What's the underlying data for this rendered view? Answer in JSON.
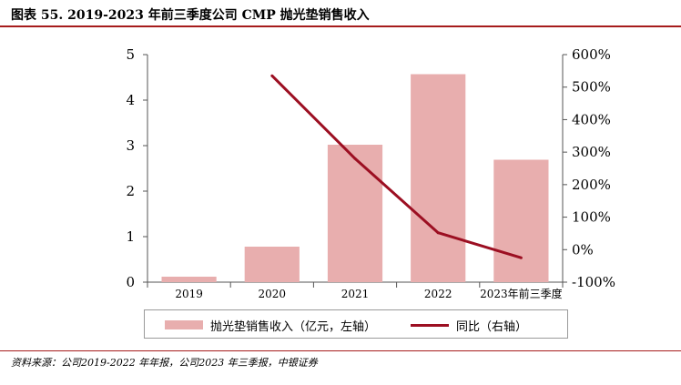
{
  "header": {
    "title": "图表 55. 2019-2023 年前三季度公司 CMP 抛光垫销售收入"
  },
  "chart_data": {
    "type": "bar",
    "categories": [
      "2019",
      "2020",
      "2021",
      "2022",
      "2023年前三季度"
    ],
    "series": [
      {
        "name": "抛光垫销售收入（亿元，左轴）",
        "kind": "bar",
        "axis": "left",
        "values": [
          0.12,
          0.78,
          3.02,
          4.57,
          2.69
        ]
      },
      {
        "name": "同比（右轴）",
        "kind": "line",
        "axis": "right",
        "values": [
          null,
          535,
          280,
          52,
          -25
        ]
      }
    ],
    "y_left": {
      "lim": [
        0,
        5
      ],
      "ticks": [
        "0",
        "1",
        "2",
        "3",
        "4",
        "5"
      ]
    },
    "y_right": {
      "lim": [
        -100,
        600
      ],
      "ticks": [
        "-100%",
        "0%",
        "100%",
        "200%",
        "300%",
        "400%",
        "500%",
        "600%"
      ]
    },
    "grid": false,
    "legend_position": "bottom",
    "colors": {
      "bar": "#e8aeae",
      "line": "#9c0f22",
      "accent": "#a61c1c"
    }
  },
  "footer": {
    "source": "资料来源：公司2019-2022 年年报，公司2023 年三季报，中银证券"
  }
}
